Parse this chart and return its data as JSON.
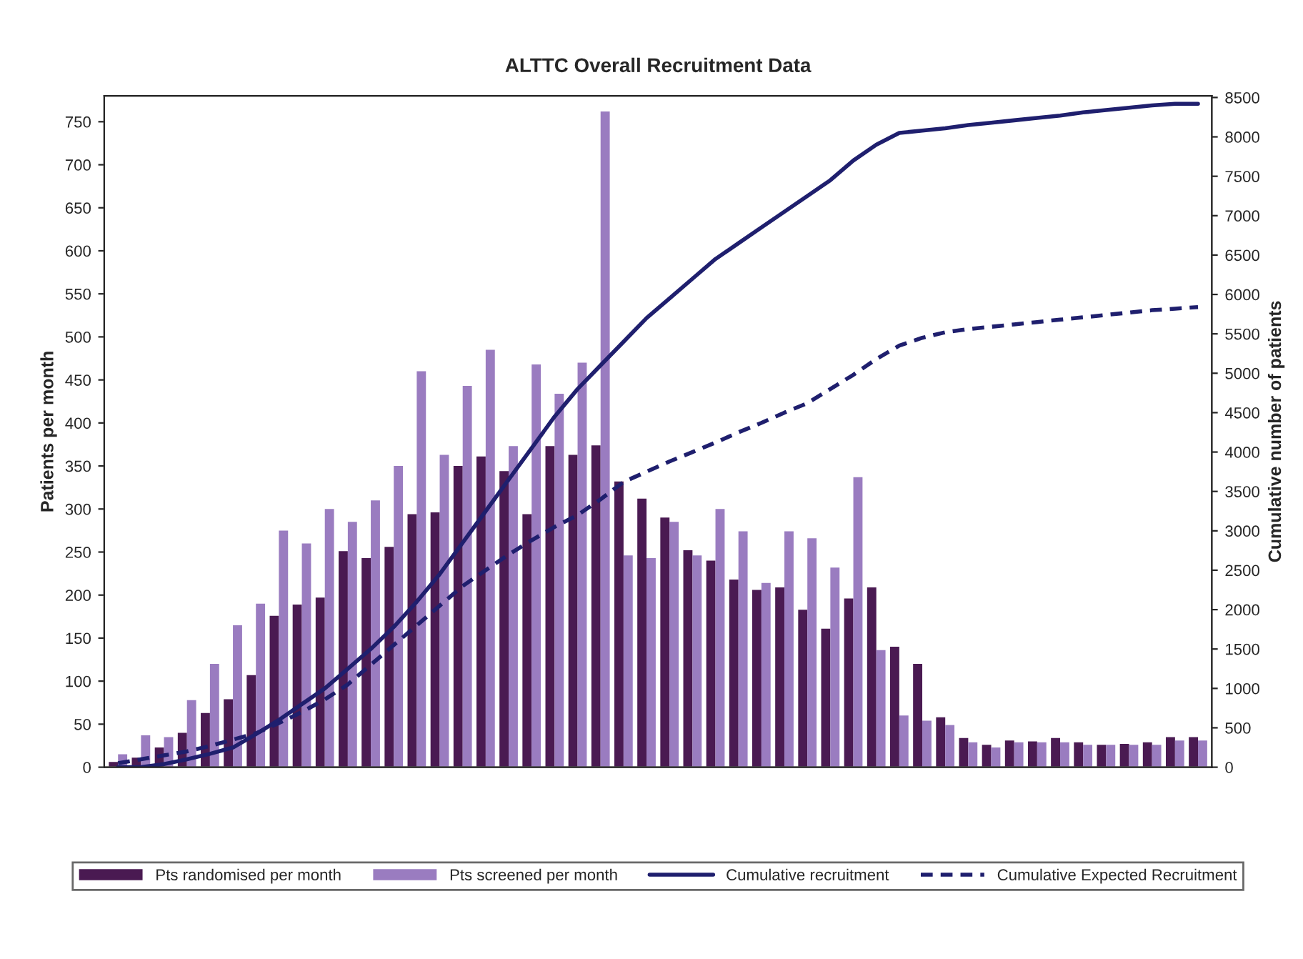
{
  "chart_data": {
    "type": "bar",
    "title": "ALTTC Overall Recruitment Data",
    "ylabel": "Patients per month",
    "y2label": "Cumulative number of patients",
    "categories": [
      null,
      null,
      null,
      null,
      null,
      null,
      null,
      null,
      null,
      null,
      null,
      null,
      null,
      null,
      null,
      null,
      null,
      null,
      null,
      null,
      null,
      null,
      null,
      null,
      null,
      null,
      null,
      null,
      null,
      null,
      null,
      null,
      null,
      null,
      null,
      null,
      null,
      null,
      null,
      null,
      null,
      null,
      null,
      null,
      null,
      null,
      null,
      null
    ],
    "series": [
      {
        "name": "Pts randomised per month",
        "color": "#4a1a52",
        "values": [
          6,
          11,
          23,
          40,
          63,
          79,
          107,
          176,
          189,
          197,
          251,
          243,
          256,
          294,
          296,
          350,
          361,
          344,
          294,
          373,
          363,
          374,
          332,
          312,
          290,
          252,
          240,
          218,
          206,
          209,
          183,
          161,
          196,
          209,
          140,
          120,
          58,
          34,
          26,
          31,
          30,
          34,
          29,
          26,
          27,
          29,
          35,
          35
        ]
      },
      {
        "name": "Pts screened per month",
        "color": "#9a7cc0",
        "values": [
          15,
          37,
          35,
          78,
          120,
          165,
          190,
          275,
          260,
          300,
          285,
          310,
          350,
          460,
          363,
          443,
          485,
          373,
          468,
          434,
          470,
          762,
          246,
          243,
          285,
          246,
          300,
          274,
          214,
          274,
          266,
          232,
          337,
          136,
          60,
          54,
          49,
          29,
          23,
          29,
          29,
          29,
          26,
          26,
          26,
          26,
          31,
          31
        ]
      },
      {
        "name": "Cumulative recruitment",
        "type": "line",
        "axis": "y2",
        "color": "#1f1f6e",
        "line_style": "solid",
        "values": [
          0,
          0,
          40,
          100,
          170,
          250,
          420,
          600,
          800,
          1000,
          1250,
          1500,
          1780,
          2100,
          2450,
          2850,
          3250,
          3650,
          4050,
          4450,
          4800,
          5100,
          5400,
          5700,
          5950,
          6200,
          6450,
          6650,
          6850,
          7050,
          7250,
          7450,
          7700,
          7900,
          8050,
          8080,
          8110,
          8150,
          8180,
          8210,
          8240,
          8270,
          8310,
          8340,
          8370,
          8400,
          8420,
          8420
        ]
      },
      {
        "name": "Cumulative Expected Recruitment",
        "type": "line",
        "axis": "y2",
        "color": "#1f1f6e",
        "line_style": "dashed",
        "values": [
          50,
          100,
          150,
          200,
          270,
          350,
          430,
          560,
          700,
          860,
          1050,
          1300,
          1550,
          1800,
          2050,
          2300,
          2500,
          2700,
          2880,
          3050,
          3200,
          3400,
          3620,
          3750,
          3880,
          4000,
          4120,
          4250,
          4370,
          4500,
          4620,
          4800,
          4980,
          5180,
          5350,
          5450,
          5520,
          5560,
          5590,
          5620,
          5650,
          5680,
          5710,
          5740,
          5770,
          5800,
          5820,
          5840
        ]
      }
    ],
    "ylim": [
      0,
      780
    ],
    "yticks": [
      0,
      50,
      100,
      150,
      200,
      250,
      300,
      350,
      400,
      450,
      500,
      550,
      600,
      650,
      700,
      750
    ],
    "y2lim": [
      0,
      8520
    ],
    "y2ticks": [
      0,
      500,
      1000,
      1500,
      2000,
      2500,
      3000,
      3500,
      4000,
      4500,
      5000,
      5500,
      6000,
      6500,
      7000,
      7500,
      8000,
      8500
    ],
    "grid": false,
    "legend": "bottom"
  }
}
